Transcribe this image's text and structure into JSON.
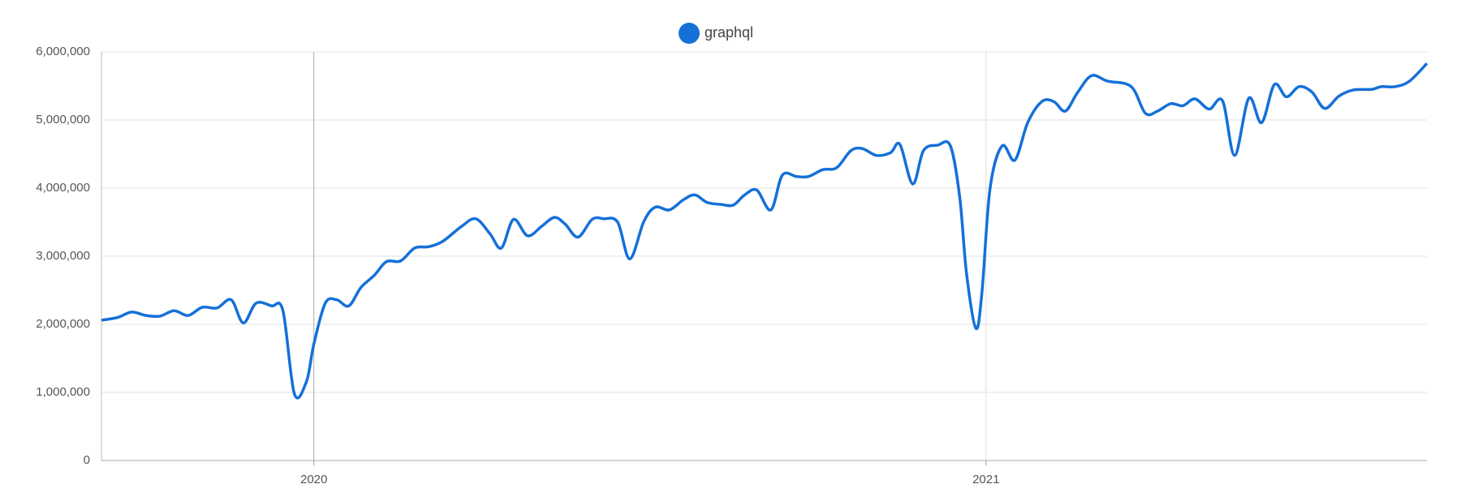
{
  "chart_data": {
    "type": "line",
    "x": [
      2019.684,
      2019.708,
      2019.729,
      2019.75,
      2019.771,
      2019.792,
      2019.813,
      2019.834,
      2019.856,
      2019.877,
      2019.895,
      2019.914,
      2019.937,
      2019.954,
      2019.971,
      2019.989,
      2020.0,
      2020.017,
      2020.034,
      2020.052,
      2020.07,
      2020.09,
      2020.108,
      2020.129,
      2020.15,
      2020.171,
      2020.192,
      2020.22,
      2020.241,
      2020.262,
      2020.279,
      2020.297,
      2020.318,
      2020.339,
      2020.358,
      2020.374,
      2020.393,
      2020.414,
      2020.431,
      2020.452,
      2020.47,
      2020.491,
      2020.508,
      2020.529,
      2020.55,
      2020.567,
      2020.585,
      2020.606,
      2020.624,
      2020.641,
      2020.659,
      2020.68,
      2020.697,
      2020.718,
      2020.736,
      2020.757,
      2020.778,
      2020.799,
      2020.816,
      2020.837,
      2020.858,
      2020.872,
      2020.891,
      2020.907,
      2020.928,
      2020.947,
      2020.961,
      2020.971,
      2020.985,
      2020.994,
      2021.006,
      2021.024,
      2021.043,
      2021.062,
      2021.083,
      2021.101,
      2021.118,
      2021.136,
      2021.157,
      2021.181,
      2021.216,
      2021.237,
      2021.255,
      2021.275,
      2021.293,
      2021.311,
      2021.332,
      2021.352,
      2021.37,
      2021.391,
      2021.41,
      2021.429,
      2021.447,
      2021.466,
      2021.485,
      2021.504,
      2021.525,
      2021.546,
      2021.574,
      2021.588,
      2021.609,
      2021.63,
      2021.656
    ],
    "series": [
      {
        "name": "graphql",
        "color": "#1570d8",
        "values": [
          2060000,
          2100000,
          2180000,
          2130000,
          2120000,
          2200000,
          2130000,
          2250000,
          2240000,
          2360000,
          2020000,
          2310000,
          2270000,
          2200000,
          980000,
          1160000,
          1710000,
          2310000,
          2360000,
          2270000,
          2540000,
          2720000,
          2920000,
          2930000,
          3120000,
          3140000,
          3220000,
          3440000,
          3550000,
          3330000,
          3120000,
          3540000,
          3300000,
          3440000,
          3570000,
          3470000,
          3280000,
          3540000,
          3550000,
          3500000,
          2960000,
          3510000,
          3720000,
          3680000,
          3830000,
          3900000,
          3790000,
          3760000,
          3750000,
          3900000,
          3970000,
          3680000,
          4190000,
          4170000,
          4170000,
          4270000,
          4300000,
          4550000,
          4580000,
          4480000,
          4520000,
          4640000,
          4060000,
          4550000,
          4630000,
          4620000,
          3860000,
          2750000,
          1940000,
          2470000,
          3990000,
          4620000,
          4410000,
          4960000,
          5270000,
          5270000,
          5130000,
          5400000,
          5650000,
          5570000,
          5490000,
          5100000,
          5130000,
          5240000,
          5210000,
          5310000,
          5160000,
          5280000,
          4480000,
          5320000,
          4960000,
          5520000,
          5340000,
          5490000,
          5410000,
          5170000,
          5350000,
          5440000,
          5450000,
          5490000,
          5490000,
          5570000,
          5830000
        ]
      }
    ],
    "xlim": [
      2019.684,
      2021.656
    ],
    "xticks": [
      2020,
      2021
    ],
    "ylim": [
      0,
      6000000
    ],
    "yticks": [
      0,
      {
        "value": 1000000,
        "label": "1,000,000"
      },
      {
        "value": 2000000,
        "label": "2,000,000"
      },
      {
        "value": 3000000,
        "label": "3,000,000"
      },
      {
        "value": 4000000,
        "label": "4,000,000"
      },
      {
        "value": 5000000,
        "label": "5,000,000"
      },
      {
        "value": 6000000,
        "label": "6,000,000"
      }
    ],
    "grid": true,
    "legend": "top"
  }
}
